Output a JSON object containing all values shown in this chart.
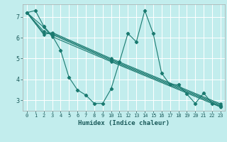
{
  "xlabel": "Humidex (Indice chaleur)",
  "xlim": [
    -0.5,
    23.5
  ],
  "ylim": [
    2.5,
    7.6
  ],
  "yticks": [
    3,
    4,
    5,
    6,
    7
  ],
  "xticks": [
    0,
    1,
    2,
    3,
    4,
    5,
    6,
    7,
    8,
    9,
    10,
    11,
    12,
    13,
    14,
    15,
    16,
    17,
    18,
    19,
    20,
    21,
    22,
    23
  ],
  "bg_color": "#c2eded",
  "line_color": "#1a7a70",
  "grid_color": "#ffffff",
  "series_main": {
    "x": [
      0,
      1,
      2,
      3,
      4,
      5,
      6,
      7,
      8,
      9,
      10,
      11,
      12,
      13,
      14,
      15,
      16,
      17,
      18,
      19,
      20,
      21,
      22,
      23
    ],
    "y": [
      7.2,
      7.3,
      6.55,
      6.1,
      5.4,
      4.1,
      3.5,
      3.25,
      2.85,
      2.85,
      3.55,
      4.85,
      6.2,
      5.8,
      7.3,
      6.2,
      4.3,
      3.75,
      3.75,
      3.3,
      2.85,
      3.35,
      2.85,
      2.7
    ]
  },
  "series_straight": [
    {
      "x": [
        0,
        2,
        3,
        10,
        23
      ],
      "y": [
        7.2,
        6.5,
        6.05,
        4.85,
        2.68
      ]
    },
    {
      "x": [
        0,
        2,
        3,
        10,
        23
      ],
      "y": [
        7.2,
        6.3,
        6.15,
        4.9,
        2.73
      ]
    },
    {
      "x": [
        0,
        2,
        3,
        10,
        23
      ],
      "y": [
        7.2,
        6.2,
        6.2,
        4.95,
        2.78
      ]
    },
    {
      "x": [
        0,
        2,
        3,
        10,
        23
      ],
      "y": [
        7.2,
        6.15,
        6.25,
        5.0,
        2.83
      ]
    }
  ]
}
